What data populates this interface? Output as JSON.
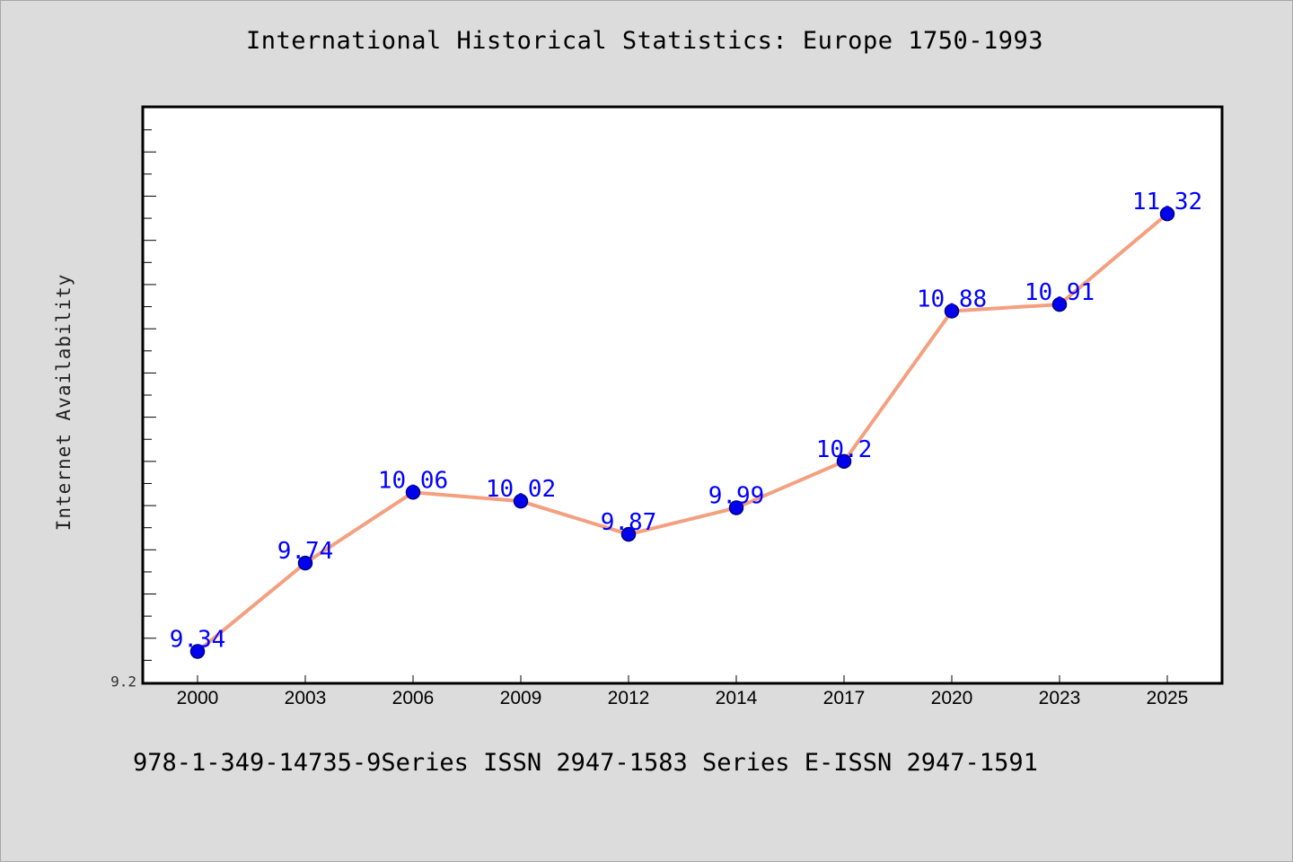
{
  "chart_data": {
    "type": "line",
    "title": "International Historical Statistics: Europe 1750-1993",
    "ylabel": "Internet Availability",
    "xlabel": "",
    "categories": [
      "2000",
      "2003",
      "2006",
      "2009",
      "2012",
      "2014",
      "2017",
      "2020",
      "2023",
      "2025"
    ],
    "values": [
      9.34,
      9.74,
      10.06,
      10.02,
      9.87,
      9.99,
      10.2,
      10.88,
      10.91,
      11.32
    ],
    "value_labels": [
      "9.34",
      "9.74",
      "10.06",
      "10.02",
      "9.87",
      "9.99",
      "10.2",
      "10.88",
      "10.91",
      "11.32"
    ],
    "y_tick_label": "9.2",
    "ylim": [
      9.2,
      11.8
    ],
    "grid": false,
    "colors": {
      "line": "#f4a080",
      "marker": "#0000ee",
      "label": "#0000ff"
    }
  },
  "footer": "978-1-349-14735-9Series ISSN 2947-1583 Series E-ISSN 2947-1591"
}
